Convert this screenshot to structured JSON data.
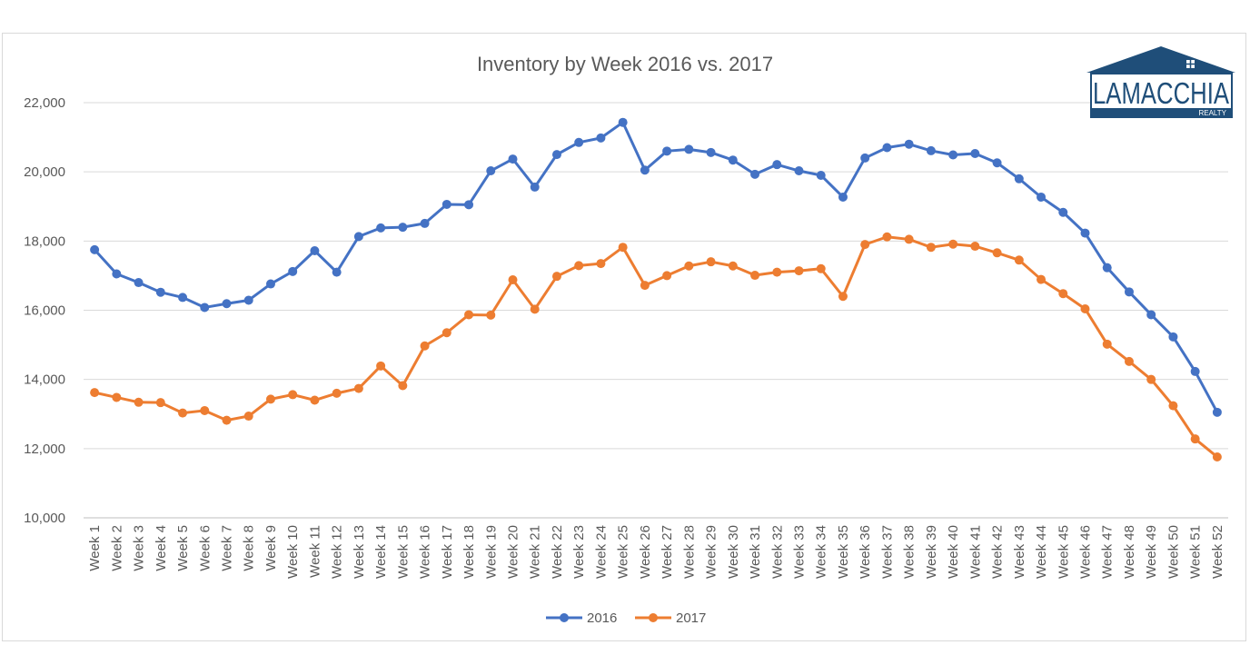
{
  "chart_data": {
    "type": "line",
    "title": "Inventory by Week 2016 vs. 2017",
    "xlabel": "",
    "ylabel": "",
    "ylim": [
      10000,
      22000
    ],
    "yticks": [
      "10,000",
      "12,000",
      "14,000",
      "16,000",
      "18,000",
      "20,000",
      "22,000"
    ],
    "grid": true,
    "legend_position": "bottom",
    "categories": [
      "Week 1",
      "Week 2",
      "Week 3",
      "Week 4",
      "Week 5",
      "Week 6",
      "Week 7",
      "Week 8",
      "Week 9",
      "Week 10",
      "Week 11",
      "Week 12",
      "Week 13",
      "Week 14",
      "Week 15",
      "Week 16",
      "Week 17",
      "Week 18",
      "Week 19",
      "Week 20",
      "Week 21",
      "Week 22",
      "Week 23",
      "Week 24",
      "Week 25",
      "Week 26",
      "Week 27",
      "Week 28",
      "Week 29",
      "Week 30",
      "Week 31",
      "Week 32",
      "Week 33",
      "Week 34",
      "Week 35",
      "Week 36",
      "Week 37",
      "Week 38",
      "Week 39",
      "Week 40",
      "Week 41",
      "Week 42",
      "Week 43",
      "Week 44",
      "Week 45",
      "Week 46",
      "Week 47",
      "Week 48",
      "Week 49",
      "Week 50",
      "Week 51",
      "Week 52"
    ],
    "series": [
      {
        "name": "2016",
        "color": "#4472c4",
        "values": [
          17750,
          17050,
          16800,
          16520,
          16370,
          16080,
          16190,
          16290,
          16760,
          17120,
          17720,
          17100,
          18130,
          18380,
          18400,
          18510,
          19060,
          19050,
          20030,
          20370,
          19560,
          20500,
          20850,
          20980,
          21430,
          20050,
          20600,
          20650,
          20560,
          20340,
          19930,
          20210,
          20030,
          19900,
          19270,
          20400,
          20700,
          20800,
          20610,
          20490,
          20530,
          20260,
          19800,
          19270,
          18830,
          18230,
          17230,
          16530,
          15870,
          15230,
          14230,
          13050
        ]
      },
      {
        "name": "2017",
        "color": "#ed7d31",
        "values": [
          13620,
          13480,
          13340,
          13330,
          13030,
          13100,
          12820,
          12940,
          13430,
          13560,
          13400,
          13600,
          13740,
          14390,
          13820,
          14970,
          15350,
          15870,
          15860,
          16880,
          16030,
          16980,
          17290,
          17350,
          17820,
          16720,
          17000,
          17280,
          17400,
          17280,
          17010,
          17100,
          17140,
          17200,
          16400,
          17900,
          18120,
          18050,
          17820,
          17910,
          17850,
          17660,
          17450,
          16890,
          16480,
          16040,
          15020,
          14520,
          14000,
          13240,
          12280,
          11760
        ]
      }
    ]
  },
  "logo": {
    "name": "LAMACCHIA",
    "sub": "REALTY",
    "color": "#1f4e79",
    "icon": "house-roof-icon"
  }
}
